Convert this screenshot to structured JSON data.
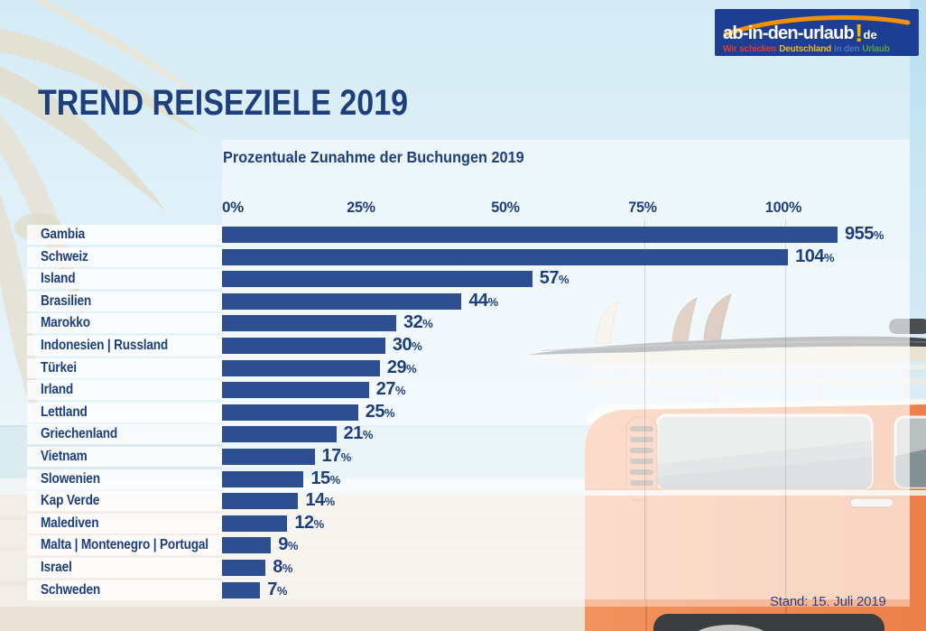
{
  "logo": {
    "brand_main": "ab-in-den-urlaub",
    "brand_bang": "!",
    "brand_tld": "de",
    "bg_color": "#1d3e92",
    "arc_color": "#f29203",
    "tagline": [
      {
        "text": "Wir schicken",
        "color": "#e23b2e"
      },
      {
        "text": "Deutschland",
        "color": "#f0b929"
      },
      {
        "text": "in den",
        "color": "#4a79c4"
      },
      {
        "text": "Urlaub",
        "color": "#58a546"
      }
    ]
  },
  "header": {
    "title": "TREND REISEZIELE 2019"
  },
  "chart_data": {
    "type": "bar",
    "orientation": "horizontal",
    "title": "Prozentuale Zunahme der Buchungen 2019",
    "categories": [
      "Gambia",
      "Schweiz",
      "Island",
      "Brasilien",
      "Marokko",
      "Indonesien | Russland",
      "Türkei",
      "Irland",
      "Lettland",
      "Griechenland",
      "Vietnam",
      "Slowenien",
      "Kap Verde",
      "Malediven",
      "Malta | Montenegro | Portugal",
      "Israel",
      "Schweden"
    ],
    "values": [
      955,
      104,
      57,
      44,
      32,
      30,
      29,
      27,
      25,
      21,
      17,
      15,
      14,
      12,
      9,
      8,
      7
    ],
    "unit": "%",
    "axis_ticks": [
      "0%",
      "25%",
      "50%",
      "75%",
      "100%"
    ],
    "xlim": [
      0,
      100
    ],
    "grid": false,
    "bar_color": "#2d4e90",
    "text_color": "#1e3f7d",
    "note": "Bars above 100% are clipped at chart edge"
  },
  "footer": {
    "stand": "Stand: 15. Juli 2019"
  }
}
